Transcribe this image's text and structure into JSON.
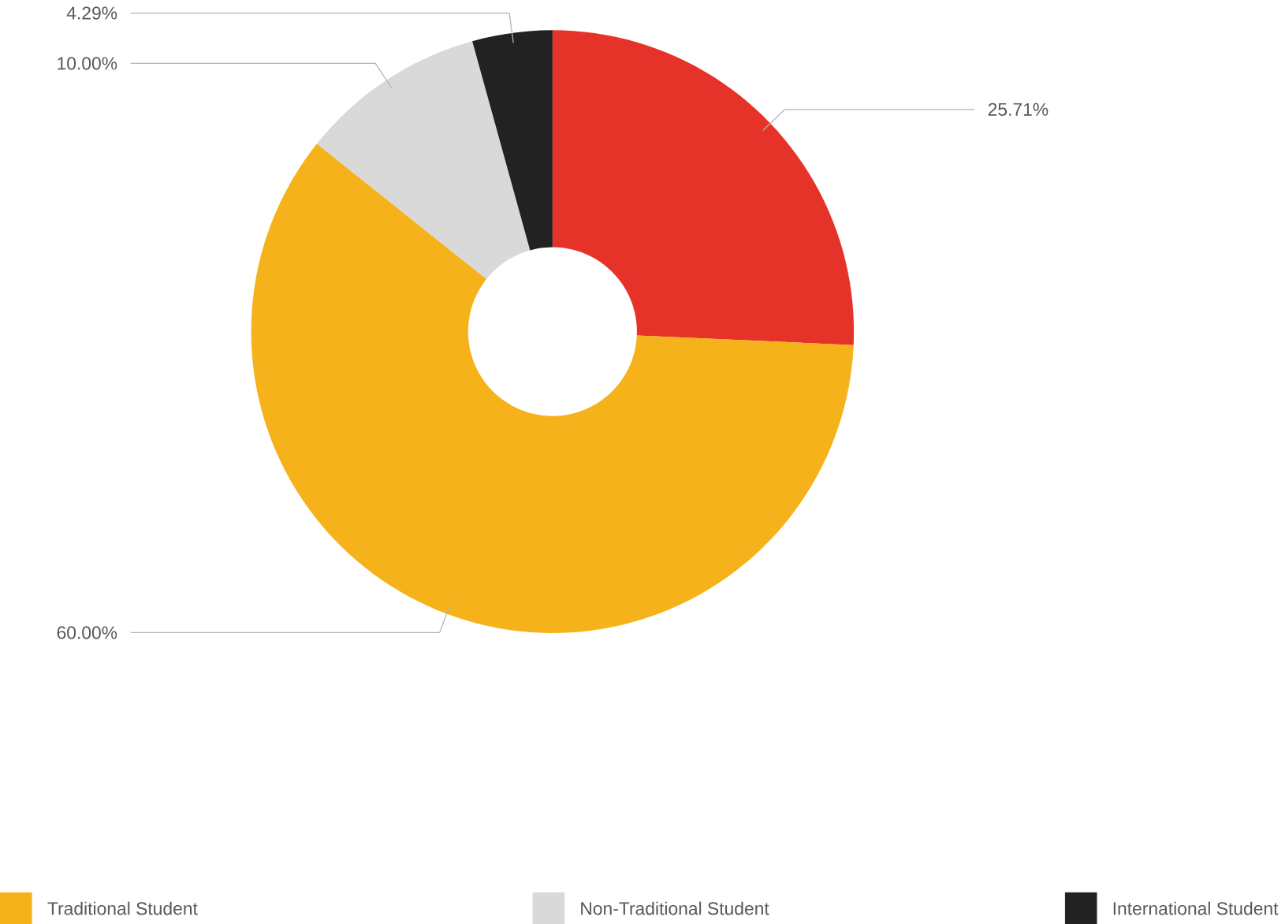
{
  "chart_data": {
    "type": "donut",
    "categories": [
      null,
      "Traditional Student",
      "Non-Traditional Student",
      "International Student"
    ],
    "values": [
      25.71,
      60.0,
      10.0,
      4.29
    ],
    "colors": [
      "#e5332a",
      "#f6b21a",
      "#d9d9d9",
      "#222222"
    ],
    "value_labels": [
      "25.71%",
      "60.00%",
      "10.00%",
      "4.29%"
    ],
    "legend": "bottom"
  }
}
